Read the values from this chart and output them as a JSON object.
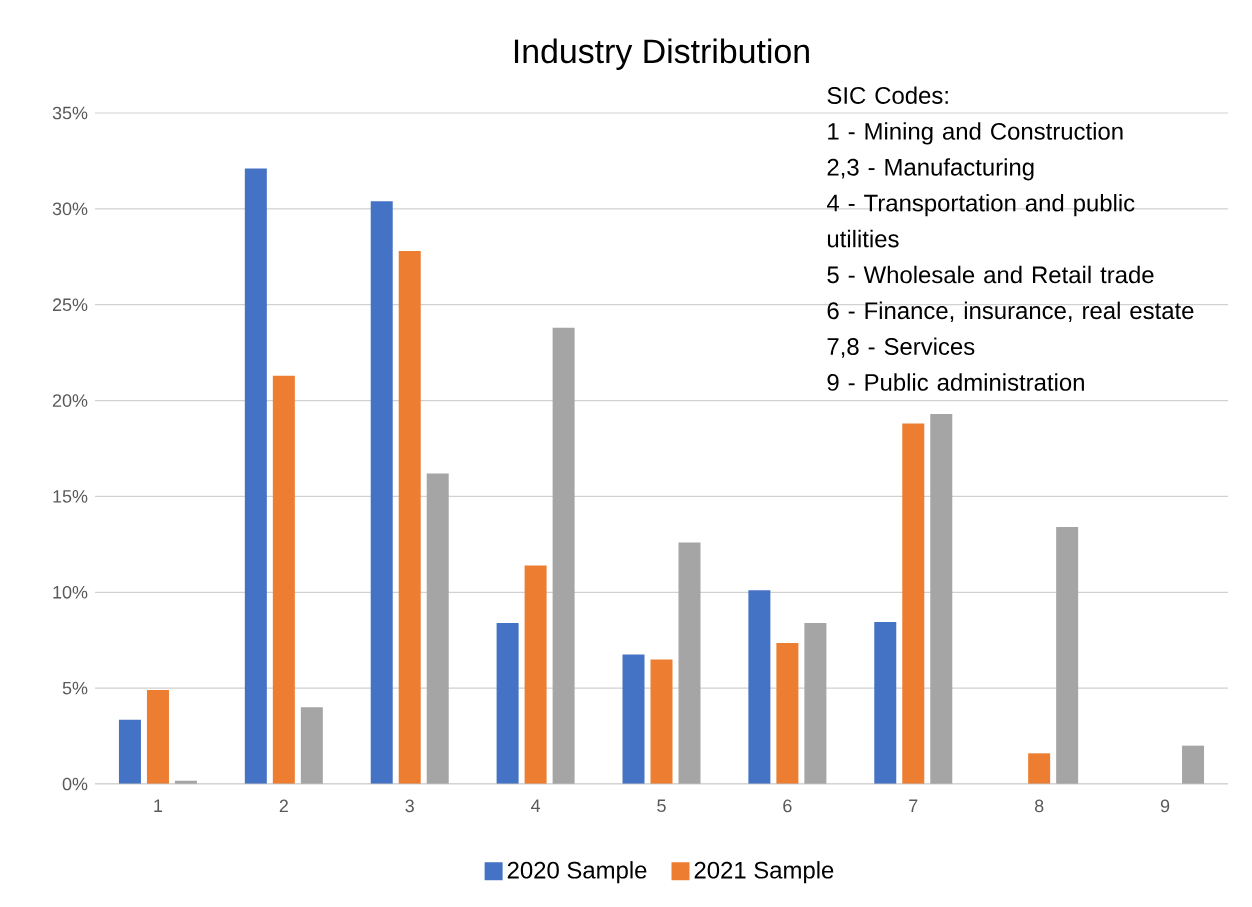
{
  "chart_data": {
    "type": "bar",
    "title": "Industry Distribution",
    "categories": [
      "1",
      "2",
      "3",
      "4",
      "5",
      "6",
      "7",
      "8",
      "9"
    ],
    "series": [
      {
        "name": "2020 Sample",
        "color": "#4472c4",
        "values": [
          3.35,
          32.1,
          30.4,
          8.4,
          6.75,
          10.1,
          8.45,
          0,
          0
        ]
      },
      {
        "name": "2021 Sample",
        "color": "#ed7d31",
        "values": [
          4.9,
          21.3,
          27.8,
          11.4,
          6.5,
          7.35,
          18.8,
          1.6,
          0
        ]
      },
      {
        "color": "#a5a5a5",
        "values": [
          0.17,
          4.0,
          16.2,
          23.8,
          12.6,
          8.4,
          19.3,
          13.4,
          2.0
        ]
      }
    ],
    "ylim": [
      0,
      35
    ],
    "yticks": [
      {
        "value": 0,
        "label": "0%"
      },
      {
        "value": 5,
        "label": "5%"
      },
      {
        "value": 10,
        "label": "10%"
      },
      {
        "value": 15,
        "label": "15%"
      },
      {
        "value": 20,
        "label": "20%"
      },
      {
        "value": 25,
        "label": "25%"
      },
      {
        "value": 30,
        "label": "30%"
      },
      {
        "value": 35,
        "label": "35%"
      }
    ],
    "grid": "y",
    "legend": "bottom",
    "annotations": [
      "SIC Codes:",
      "1 - Mining and Construction",
      "2,3 - Manufacturing",
      "4 - Transportation and public utilities",
      "5 - Wholesale and Retail trade",
      "6 - Finance, insurance, real estate",
      "7,8 - Services",
      "9 - Public administration"
    ]
  }
}
